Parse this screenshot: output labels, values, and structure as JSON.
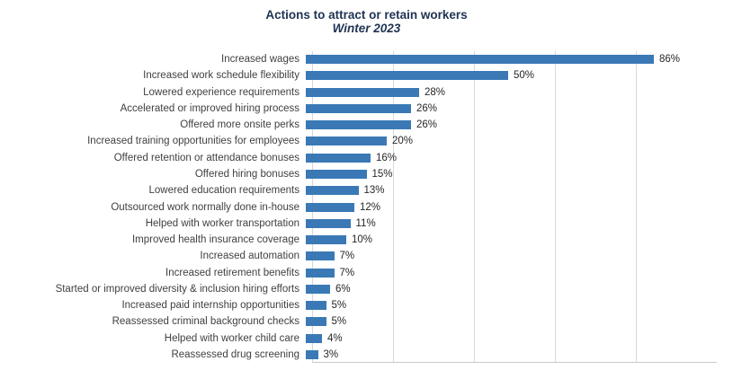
{
  "chart_data": {
    "type": "bar",
    "orientation": "horizontal",
    "title": "Actions to attract or retain workers",
    "subtitle": "Winter 2023",
    "categories": [
      "Increased wages",
      "Increased work schedule flexibility",
      "Lowered experience requirements",
      "Accelerated or improved hiring process",
      "Offered more onsite perks",
      "Increased training opportunities for employees",
      "Offered retention or attendance bonuses",
      "Offered hiring bonuses",
      "Lowered education requirements",
      "Outsourced work normally done in-house",
      "Helped with worker transportation",
      "Improved health insurance coverage",
      "Increased automation",
      "Increased retirement benefits",
      "Started or improved diversity & inclusion hiring efforts",
      "Increased paid internship opportunities",
      "Reassessed criminal background checks",
      "Helped with worker child care",
      "Reassessed drug screening"
    ],
    "values": [
      86,
      50,
      28,
      26,
      26,
      20,
      16,
      15,
      13,
      12,
      11,
      10,
      7,
      7,
      6,
      5,
      5,
      4,
      3
    ],
    "value_labels": [
      "86%",
      "50%",
      "28%",
      "26%",
      "26%",
      "20%",
      "16%",
      "15%",
      "13%",
      "12%",
      "11%",
      "10%",
      "7%",
      "7%",
      "6%",
      "5%",
      "5%",
      "4%",
      "3%"
    ],
    "xlim": [
      0,
      100
    ],
    "gridline_interval": 20,
    "grid": "vertical",
    "legend_position": "none",
    "bar_color": "#3a79b5",
    "gridline_color": "#d9d9d9",
    "title_color": "#1f3353",
    "label_color": "#404040"
  }
}
